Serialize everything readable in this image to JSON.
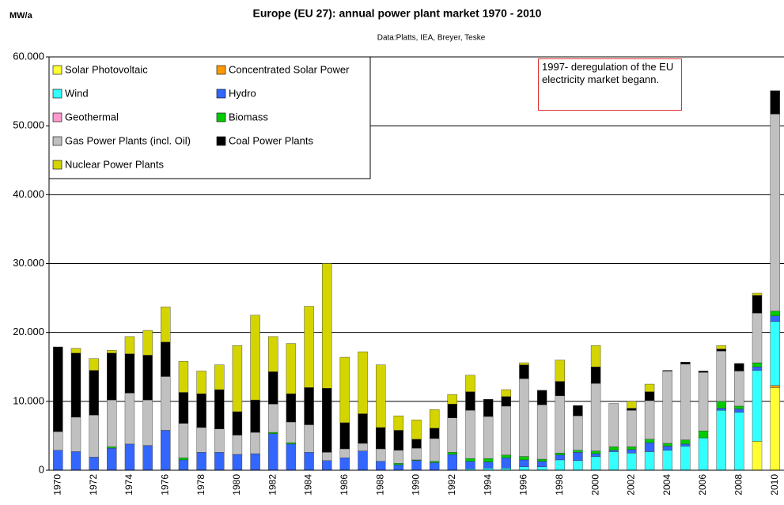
{
  "chart_data": {
    "type": "stacked_bar",
    "title": "Europe (EU 27): annual power plant market 1970 - 2010",
    "subtitle": "Data:Platts, IEA, Breyer, Teske",
    "y_label": "MW/a",
    "annotation": "1997- deregulation of the EU electricity market begann.",
    "categories": [
      "1970",
      null,
      "1972",
      null,
      "1974",
      null,
      "1976",
      null,
      "1978",
      null,
      "1980",
      null,
      "1982",
      null,
      "1984",
      null,
      "1986",
      null,
      "1988",
      null,
      "1990",
      null,
      "1992",
      null,
      "1994",
      null,
      "1996",
      null,
      "1998",
      null,
      "2000",
      null,
      "2002",
      null,
      "2004",
      null,
      "2006",
      null,
      "2008",
      null,
      "2010"
    ],
    "ylim": [
      0,
      60000
    ],
    "yticks": [
      0,
      {
        "value": 10000,
        "label": "10.000"
      },
      {
        "value": 20000,
        "label": "20.000"
      },
      {
        "value": 30000,
        "label": "30.000"
      },
      {
        "value": 40000,
        "label": "40.000"
      },
      {
        "value": 50000,
        "label": "50.000"
      },
      {
        "value": 60000,
        "label": "60.000"
      }
    ],
    "grid": true,
    "legend": "top-left",
    "series": [
      {
        "name": "Solar Photovoltaic",
        "color": "#ffff33",
        "values": [
          0,
          0,
          0,
          0,
          0,
          0,
          0,
          0,
          0,
          0,
          0,
          0,
          0,
          0,
          0,
          0,
          0,
          0,
          0,
          0,
          0,
          0,
          0,
          0,
          0,
          0,
          0,
          0,
          0,
          0,
          0,
          0,
          0,
          0,
          0,
          0,
          0,
          0,
          0,
          4200,
          12000
        ]
      },
      {
        "name": "Concentrated Solar Power",
        "color": "#ff9900",
        "values": [
          0,
          0,
          0,
          0,
          0,
          0,
          0,
          0,
          0,
          0,
          0,
          0,
          0,
          0,
          0,
          0,
          0,
          0,
          0,
          0,
          0,
          0,
          0,
          0,
          0,
          0,
          0,
          0,
          0,
          0,
          0,
          0,
          0,
          0,
          0,
          0,
          0,
          0,
          0,
          0,
          300
        ]
      },
      {
        "name": "Wind",
        "color": "#33ffff",
        "values": [
          0,
          0,
          0,
          0,
          0,
          0,
          0,
          0,
          0,
          0,
          0,
          0,
          0,
          0,
          0,
          0,
          0,
          0,
          0,
          0,
          0,
          0,
          0,
          200,
          300,
          300,
          500,
          500,
          1500,
          1400,
          2000,
          2700,
          2500,
          2700,
          2900,
          3500,
          4700,
          8700,
          8400,
          10300,
          9300
        ]
      },
      {
        "name": "Hydro",
        "color": "#3366ff",
        "values": [
          2900,
          2700,
          1900,
          3200,
          3800,
          3600,
          5800,
          1500,
          2600,
          2600,
          2300,
          2400,
          5300,
          3800,
          2600,
          1400,
          1800,
          2800,
          1300,
          800,
          1400,
          1100,
          2300,
          1100,
          900,
          1500,
          1000,
          800,
          700,
          1200,
          400,
          200,
          500,
          1300,
          600,
          300,
          0,
          300,
          500,
          500,
          800
        ]
      },
      {
        "name": "Geothermal",
        "color": "#ff99cc",
        "values": [
          0,
          0,
          0,
          0,
          0,
          0,
          0,
          0,
          0,
          0,
          0,
          0,
          0,
          0,
          0,
          0,
          0,
          0,
          0,
          0,
          0,
          0,
          0,
          0,
          0,
          0,
          0,
          0,
          0,
          0,
          0,
          0,
          0,
          0,
          0,
          0,
          0,
          0,
          0,
          0,
          0
        ]
      },
      {
        "name": "Biomass",
        "color": "#00cc00",
        "values": [
          0,
          0,
          0,
          200,
          0,
          0,
          0,
          300,
          0,
          0,
          0,
          0,
          200,
          200,
          0,
          0,
          0,
          0,
          0,
          200,
          100,
          200,
          300,
          400,
          500,
          400,
          500,
          300,
          300,
          300,
          400,
          500,
          400,
          500,
          400,
          600,
          1000,
          1000,
          400,
          600,
          700
        ]
      },
      {
        "name": "Gas Power Plants (incl. Oil)",
        "color": "#c0c0c0",
        "values": [
          2700,
          5000,
          6100,
          6800,
          7400,
          6600,
          7800,
          5000,
          3600,
          3400,
          2800,
          3100,
          4100,
          3000,
          4000,
          1200,
          1300,
          1100,
          1800,
          1900,
          1700,
          3300,
          5000,
          7000,
          6100,
          7100,
          11300,
          7900,
          8300,
          5000,
          9800,
          6300,
          5300,
          5600,
          10500,
          11000,
          8500,
          7300,
          5100,
          7200,
          28600
        ]
      },
      {
        "name": "Coal Power Plants",
        "color": "#000000",
        "values": [
          12300,
          9300,
          6500,
          6800,
          5700,
          6500,
          5000,
          4500,
          4900,
          5700,
          3400,
          4700,
          4700,
          4100,
          5400,
          9300,
          3800,
          4300,
          3100,
          2900,
          1300,
          1500,
          2000,
          2700,
          2500,
          1400,
          2000,
          2100,
          2100,
          1500,
          2400,
          0,
          300,
          1300,
          100,
          300,
          200,
          300,
          1100,
          2600,
          3400
        ]
      },
      {
        "name": "Nuclear Power Plants",
        "color": "#d4d400",
        "values": [
          0,
          700,
          1700,
          400,
          2500,
          3600,
          5100,
          4500,
          3300,
          3600,
          9600,
          12300,
          5100,
          7300,
          11800,
          18100,
          9500,
          9000,
          9100,
          2100,
          2800,
          2700,
          1400,
          2400,
          0,
          1000,
          300,
          0,
          3100,
          0,
          3100,
          0,
          1000,
          1100,
          0,
          0,
          0,
          500,
          0,
          300,
          0
        ]
      }
    ]
  }
}
